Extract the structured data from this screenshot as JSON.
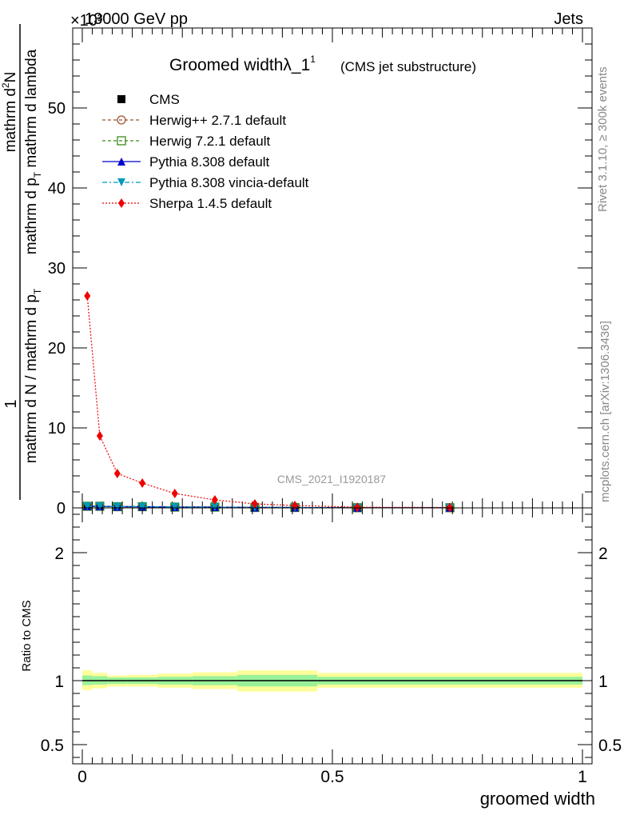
{
  "header": {
    "energy_label": "13000 GeV pp",
    "process_label": "Jets",
    "exponent_label": "×10³"
  },
  "side": {
    "rivet_label": "Rivet 3.1.10, ≥ 300k events",
    "mcplots_label": "mcplots.cern.ch [arXiv:1306.3436]"
  },
  "chart_data": {
    "type": "line",
    "title": "Groomed widthλ_1¹",
    "title_main": "Groomed widthλ_1",
    "title_sup": "1",
    "subtitle": "(CMS jet substructure)",
    "watermark": "CMS_2021_I1920187",
    "xlabel": "groomed width",
    "ylabel": {
      "numerator_prefix": "1",
      "denominator": "mathrm d N / mathrm d p",
      "denominator_sub": "T",
      "numerator2": "mathrm d",
      "numerator2_sup": "2",
      "numerator2_rest": "N",
      "denominator2": "mathrm d p",
      "denominator2_sub": "T",
      "denominator2_rest": " mathrm d lambda"
    },
    "ratio_ylabel": "Ratio to CMS",
    "xlim": [
      -0.02,
      1.02
    ],
    "ylim": [
      0,
      60
    ],
    "ratio_ylim": [
      0.35,
      2.35
    ],
    "x_ticks": [
      "0",
      "0.5",
      "1"
    ],
    "y_ticks": [
      "0",
      "10",
      "20",
      "30",
      "40",
      "50"
    ],
    "ratio_ticks_left": [
      "0.5",
      "1",
      "2"
    ],
    "ratio_ticks_right": [
      "0.5",
      "1",
      "2"
    ],
    "x": [
      0.01,
      0.035,
      0.07,
      0.12,
      0.185,
      0.265,
      0.345,
      0.425,
      0.55,
      0.735
    ],
    "series": [
      {
        "name": "CMS",
        "color": "#000000",
        "marker": "square-filled",
        "values": [
          0.2,
          0.2,
          0.15,
          0.15,
          0.1,
          0.1,
          0.05,
          0.05,
          0.02,
          0.02
        ]
      },
      {
        "name": "Herwig++ 2.7.1 default",
        "color": "#a0522d",
        "marker": "circle-open",
        "dash": "4,3",
        "values": [
          0.2,
          0.2,
          0.15,
          0.15,
          0.1,
          0.1,
          0.05,
          0.05,
          0.02,
          0.02
        ]
      },
      {
        "name": "Herwig 7.2.1 default",
        "color": "#3a8a1a",
        "marker": "square-open",
        "dash": "4,3",
        "values": [
          0.2,
          0.2,
          0.15,
          0.15,
          0.1,
          0.1,
          0.05,
          0.05,
          0.02,
          0.02
        ]
      },
      {
        "name": "Pythia 8.308 default",
        "color": "#0000cc",
        "marker": "triangle-up",
        "values": [
          0.2,
          0.2,
          0.15,
          0.15,
          0.1,
          0.1,
          0.05,
          0.05,
          0.02,
          0.02
        ]
      },
      {
        "name": "Pythia 8.308 vincia-default",
        "color": "#0099bb",
        "marker": "triangle-down",
        "dash": "6,3,2,3",
        "values": [
          0.2,
          0.2,
          0.15,
          0.15,
          0.1,
          0.1,
          0.05,
          0.05,
          0.02,
          0.02
        ]
      },
      {
        "name": "Sherpa 1.4.5 default",
        "color": "#ee0000",
        "marker": "diamond",
        "dash": "2,2",
        "values": [
          26.5,
          9.0,
          4.3,
          3.1,
          1.8,
          1.0,
          0.5,
          0.3,
          0.08,
          0.05
        ]
      }
    ],
    "ratio_bands": {
      "bins": [
        [
          0.0,
          0.02
        ],
        [
          0.02,
          0.05
        ],
        [
          0.05,
          0.09
        ],
        [
          0.09,
          0.15
        ],
        [
          0.15,
          0.22
        ],
        [
          0.22,
          0.31
        ],
        [
          0.31,
          0.47
        ],
        [
          0.47,
          1.0
        ]
      ],
      "inner": [
        [
          0.965,
          1.04
        ],
        [
          0.97,
          1.035
        ],
        [
          0.975,
          1.025
        ],
        [
          0.975,
          1.025
        ],
        [
          0.97,
          1.03
        ],
        [
          0.965,
          1.035
        ],
        [
          0.955,
          1.045
        ],
        [
          0.97,
          1.03
        ]
      ],
      "outer": [
        [
          0.925,
          1.08
        ],
        [
          0.94,
          1.06
        ],
        [
          0.955,
          1.04
        ],
        [
          0.955,
          1.045
        ],
        [
          0.945,
          1.055
        ],
        [
          0.935,
          1.065
        ],
        [
          0.915,
          1.08
        ],
        [
          0.945,
          1.06
        ]
      ],
      "inner_color": "#99f199",
      "outer_color": "#fdfd99"
    }
  }
}
